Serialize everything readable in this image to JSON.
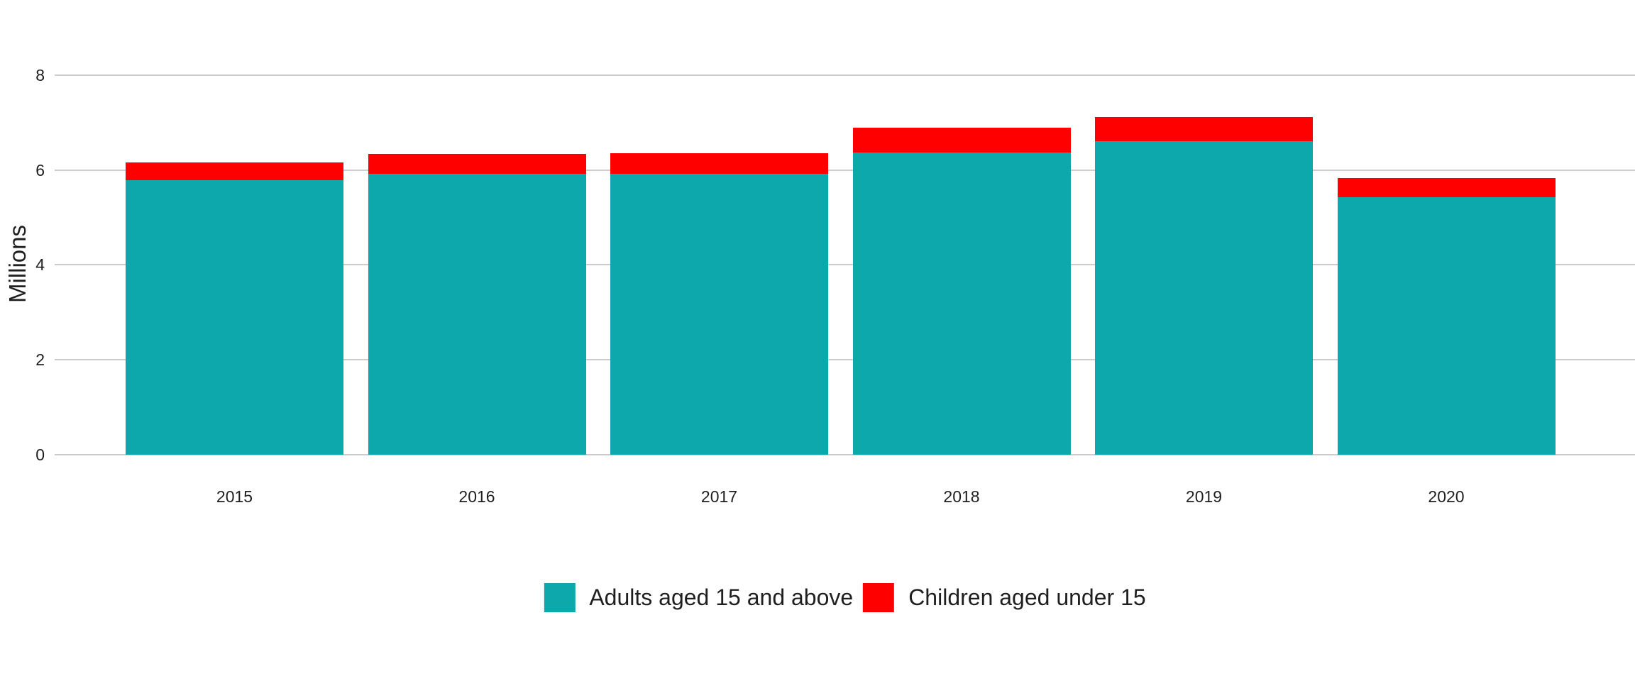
{
  "chart_data": {
    "type": "bar",
    "stacked": true,
    "categories": [
      "2015",
      "2016",
      "2017",
      "2018",
      "2019",
      "2020"
    ],
    "series": [
      {
        "name": "Adults aged 15 and above",
        "color": "#0CA8AC",
        "values": [
          5.79,
          5.92,
          5.92,
          6.37,
          6.61,
          5.43
        ]
      },
      {
        "name": "Children aged under 15",
        "color": "#FF0000",
        "values": [
          0.37,
          0.42,
          0.44,
          0.52,
          0.51,
          0.4
        ]
      }
    ],
    "totals": [
      6.16,
      6.34,
      6.36,
      6.89,
      7.12,
      5.83
    ],
    "title": "",
    "xlabel": "",
    "ylabel": "Millions",
    "yticks": [
      0,
      2,
      4,
      6,
      8
    ],
    "ylim": [
      0,
      8
    ],
    "grid": true,
    "gridline_color": "#cccccc",
    "background_color": "#ffffff",
    "text_color": "#1f1f1f",
    "legend_position": "bottom"
  }
}
